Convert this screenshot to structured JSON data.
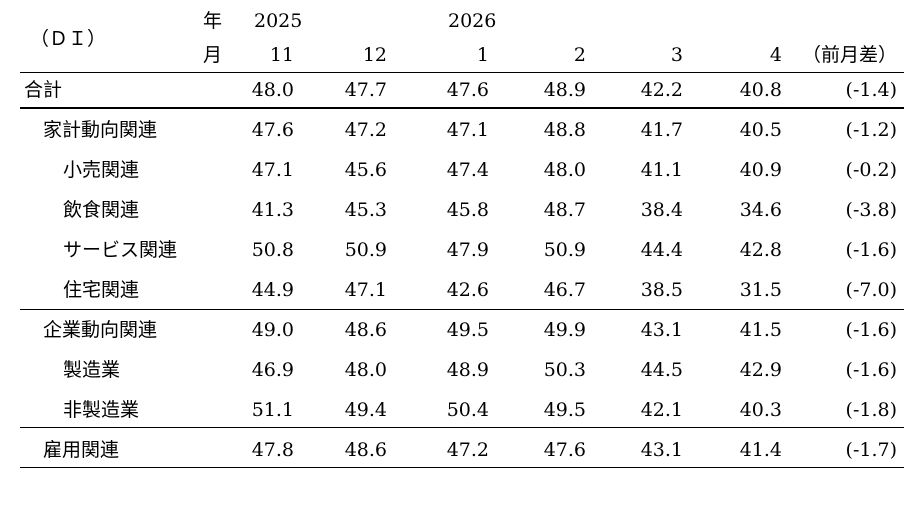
{
  "header": {
    "di_label": "（ＤＩ）",
    "year_label": "年",
    "month_label": "月",
    "year_2025": "2025",
    "year_2026": "2026",
    "months": [
      "11",
      "12",
      "1",
      "2",
      "3",
      "4"
    ],
    "diff_label": "（前月差）"
  },
  "rows": [
    {
      "label": "合計",
      "values": [
        "48.0",
        "47.7",
        "47.6",
        "48.9",
        "42.2",
        "40.8"
      ],
      "diff": "(-1.4)"
    },
    {
      "label": "家計動向関連",
      "values": [
        "47.6",
        "47.2",
        "47.1",
        "48.8",
        "41.7",
        "40.5"
      ],
      "diff": "(-1.2)"
    },
    {
      "label": "小売関連",
      "values": [
        "47.1",
        "45.6",
        "47.4",
        "48.0",
        "41.1",
        "40.9"
      ],
      "diff": "(-0.2)"
    },
    {
      "label": "飲食関連",
      "values": [
        "41.3",
        "45.3",
        "45.8",
        "48.7",
        "38.4",
        "34.6"
      ],
      "diff": "(-3.8)"
    },
    {
      "label": "サービス関連",
      "values": [
        "50.8",
        "50.9",
        "47.9",
        "50.9",
        "44.4",
        "42.8"
      ],
      "diff": "(-1.6)"
    },
    {
      "label": "住宅関連",
      "values": [
        "44.9",
        "47.1",
        "42.6",
        "46.7",
        "38.5",
        "31.5"
      ],
      "diff": "(-7.0)"
    },
    {
      "label": "企業動向関連",
      "values": [
        "49.0",
        "48.6",
        "49.5",
        "49.9",
        "43.1",
        "41.5"
      ],
      "diff": "(-1.6)"
    },
    {
      "label": "製造業",
      "values": [
        "46.9",
        "48.0",
        "48.9",
        "50.3",
        "44.5",
        "42.9"
      ],
      "diff": "(-1.6)"
    },
    {
      "label": "非製造業",
      "values": [
        "51.1",
        "49.4",
        "50.4",
        "49.5",
        "42.1",
        "40.3"
      ],
      "diff": "(-1.8)"
    },
    {
      "label": "雇用関連",
      "values": [
        "47.8",
        "48.6",
        "47.2",
        "47.6",
        "43.1",
        "41.4"
      ],
      "diff": "(-1.7)"
    }
  ]
}
